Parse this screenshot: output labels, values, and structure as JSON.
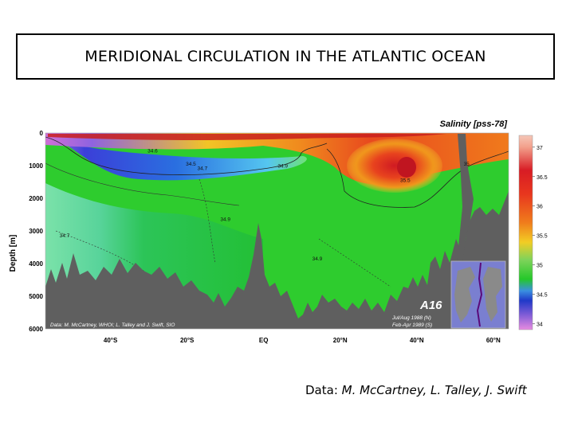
{
  "page": {
    "title": "MERIDIONAL CIRCULATION IN THE ATLANTIC OCEAN",
    "caption_prefix": "Data: ",
    "caption_names": "M. McCartney, L. Talley, J. Swift"
  },
  "colors": {
    "land": "#5f5f5f",
    "background_water": "#2ecc2e"
  },
  "chart_data": {
    "type": "heatmap",
    "title": "Salinity [pss-78]",
    "xlabel": "",
    "ylabel": "Depth [m]",
    "x_ticks": [
      "40°S",
      "20°S",
      "EQ",
      "20°N",
      "40°N",
      "60°N"
    ],
    "x_tick_values": [
      -40,
      -20,
      0,
      20,
      40,
      60
    ],
    "xlim": [
      -57,
      64
    ],
    "y_ticks": [
      "0",
      "1000",
      "2000",
      "3000",
      "4000",
      "5000",
      "6000"
    ],
    "y_tick_values": [
      0,
      1000,
      2000,
      3000,
      4000,
      5000,
      6000
    ],
    "ylim": [
      0,
      6000
    ],
    "colorbar": {
      "ticks": [
        "37",
        "36.5",
        "36",
        "35.5",
        "35",
        "34.5",
        "34"
      ],
      "tick_values": [
        37,
        36.5,
        36,
        35.5,
        35,
        34.5,
        34
      ],
      "range": [
        33.9,
        37.2
      ]
    },
    "contour_labels": [
      {
        "text": "34.6",
        "lat": -29,
        "depth": 600
      },
      {
        "text": "34.5",
        "lat": -19,
        "depth": 1000
      },
      {
        "text": "34.7",
        "lat": -16,
        "depth": 1130
      },
      {
        "text": "34.9",
        "lat": 5,
        "depth": 1060
      },
      {
        "text": "34.9",
        "lat": -10,
        "depth": 2700
      },
      {
        "text": "34.7",
        "lat": -52,
        "depth": 3200
      },
      {
        "text": "34.9",
        "lat": 14,
        "depth": 3900
      },
      {
        "text": "35",
        "lat": 53,
        "depth": 1000
      },
      {
        "text": "35.5",
        "lat": 37,
        "depth": 1500
      }
    ],
    "section_name": "A16",
    "cruise_dates": [
      "Jul/Aug 1988 (N)",
      "Feb-Apr 1989 (S)"
    ],
    "source_note": "Data: M. McCartney, WHOI; L. Talley and J. Swift, SIO"
  }
}
